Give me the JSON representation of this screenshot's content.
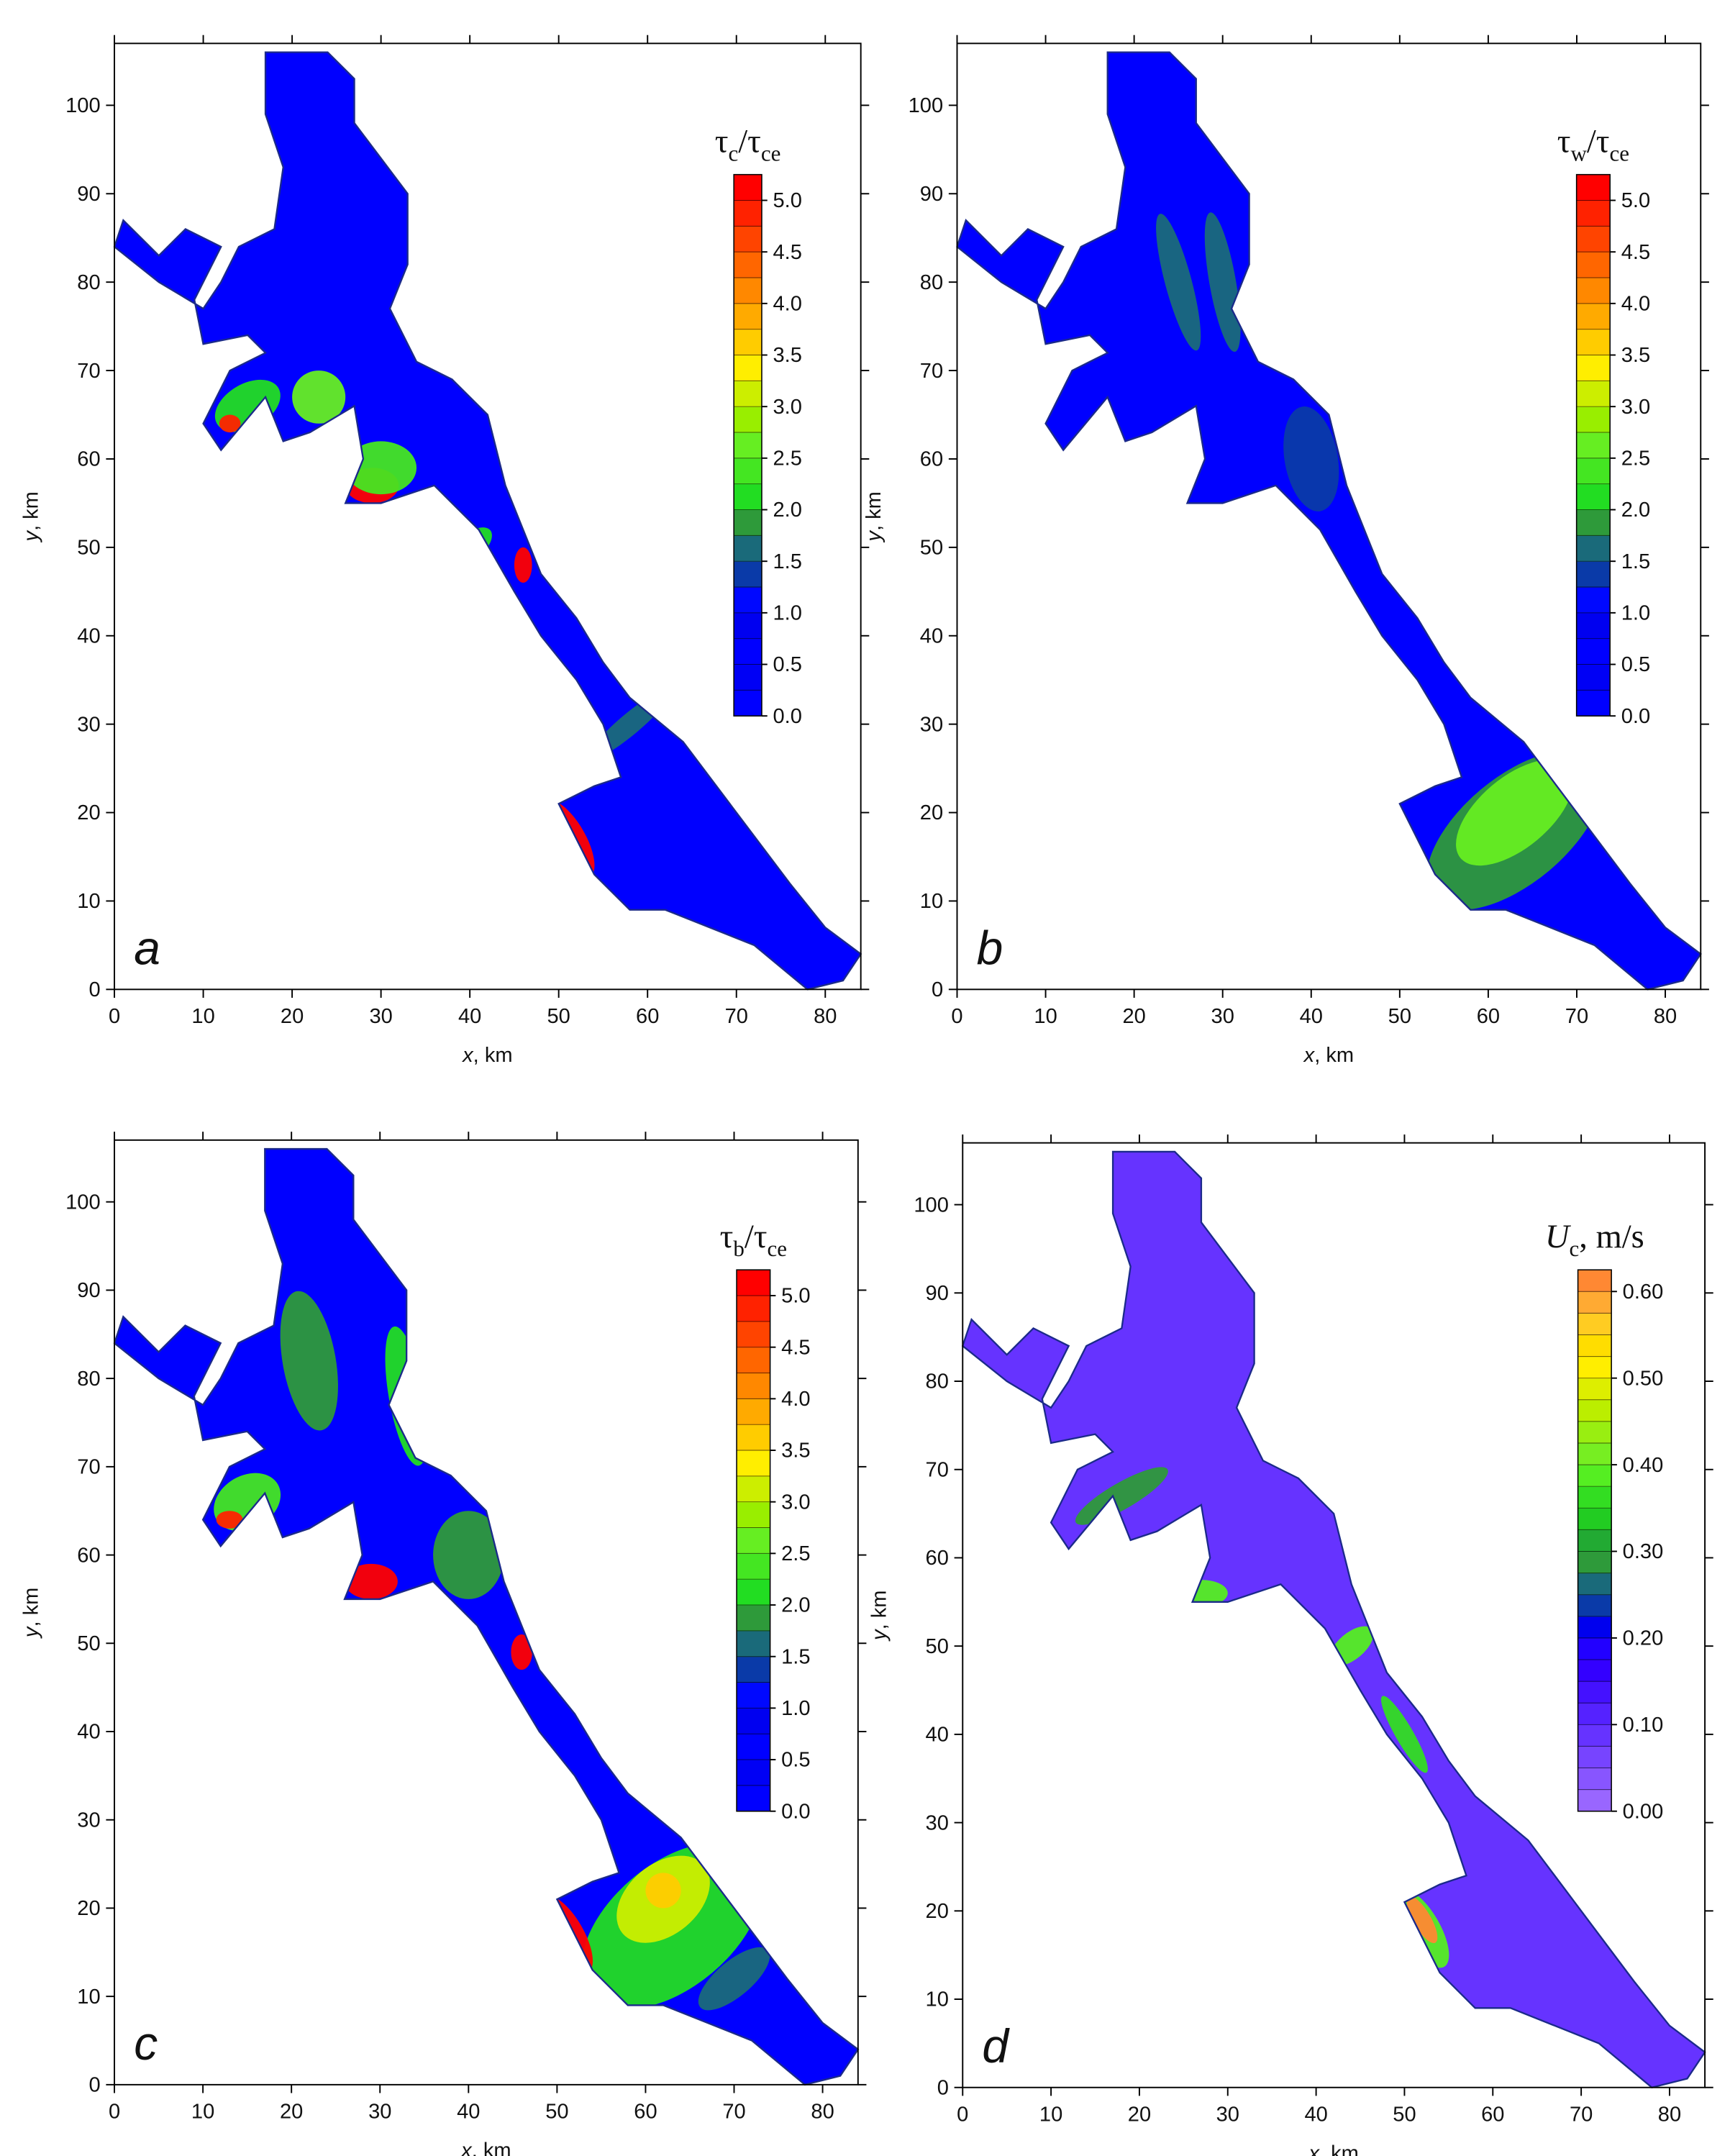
{
  "chart_data": [
    {
      "type": "contour",
      "panel_label": "a",
      "xlabel": [
        "x",
        ", km"
      ],
      "ylabel": [
        "y",
        ", km"
      ],
      "xlim": [
        0,
        84
      ],
      "ylim": [
        0,
        107
      ],
      "xticks": [
        0,
        10,
        20,
        30,
        40,
        50,
        60,
        70,
        80
      ],
      "yticks": [
        0,
        10,
        20,
        30,
        40,
        50,
        60,
        70,
        80,
        90,
        100
      ],
      "colorbar": {
        "label": [
          "τ",
          "c",
          "/τ",
          "ce"
        ],
        "lim": [
          0,
          5.25
        ],
        "ticks": [
          {
            "value": 0,
            "label": "0.0"
          },
          {
            "value": 0.5,
            "label": "0.5"
          },
          {
            "value": 1,
            "label": "1.0"
          },
          {
            "value": 1.5,
            "label": "1.5"
          },
          {
            "value": 2,
            "label": "2.0"
          },
          {
            "value": 2.5,
            "label": "2.5"
          },
          {
            "value": 3,
            "label": "3.0"
          },
          {
            "value": 3.5,
            "label": "3.5"
          },
          {
            "value": 4,
            "label": "4.0"
          },
          {
            "value": 4.5,
            "label": "4.5"
          },
          {
            "value": 5,
            "label": "5.0"
          }
        ],
        "colors": [
          "#0000ff",
          "#0000f5",
          "#0000ff",
          "#0000f0",
          "#0008ff",
          "#0a3aa8",
          "#1a6a7a",
          "#2e9a3a",
          "#22dd22",
          "#44e622",
          "#66ee22",
          "#99ee00",
          "#ccee00",
          "#ffee00",
          "#ffcc00",
          "#ffaa00",
          "#ff8800",
          "#ff6600",
          "#ff4400",
          "#ff2200",
          "#ff0000"
        ]
      }
    },
    {
      "type": "contour",
      "panel_label": "b",
      "xlabel": [
        "x",
        ", km"
      ],
      "ylabel": [
        "y",
        ", km"
      ],
      "xlim": [
        0,
        84
      ],
      "ylim": [
        0,
        107
      ],
      "xticks": [
        0,
        10,
        20,
        30,
        40,
        50,
        60,
        70,
        80
      ],
      "yticks": [
        0,
        10,
        20,
        30,
        40,
        50,
        60,
        70,
        80,
        90,
        100
      ],
      "colorbar": {
        "label": [
          "τ",
          "w",
          "/τ",
          "ce"
        ],
        "lim": [
          0,
          5.25
        ],
        "ticks": [
          {
            "value": 0,
            "label": "0.0"
          },
          {
            "value": 0.5,
            "label": "0.5"
          },
          {
            "value": 1,
            "label": "1.0"
          },
          {
            "value": 1.5,
            "label": "1.5"
          },
          {
            "value": 2,
            "label": "2.0"
          },
          {
            "value": 2.5,
            "label": "2.5"
          },
          {
            "value": 3,
            "label": "3.0"
          },
          {
            "value": 3.5,
            "label": "3.5"
          },
          {
            "value": 4,
            "label": "4.0"
          },
          {
            "value": 4.5,
            "label": "4.5"
          },
          {
            "value": 5,
            "label": "5.0"
          }
        ],
        "colors": [
          "#0000ff",
          "#0000f5",
          "#0000ff",
          "#0000f0",
          "#0008ff",
          "#0a3aa8",
          "#1a6a7a",
          "#2e9a3a",
          "#22dd22",
          "#44e622",
          "#66ee22",
          "#99ee00",
          "#ccee00",
          "#ffee00",
          "#ffcc00",
          "#ffaa00",
          "#ff8800",
          "#ff6600",
          "#ff4400",
          "#ff2200",
          "#ff0000"
        ]
      }
    },
    {
      "type": "contour",
      "panel_label": "c",
      "xlabel": [
        "x",
        ", km"
      ],
      "ylabel": [
        "y",
        ", km"
      ],
      "xlim": [
        0,
        84
      ],
      "ylim": [
        0,
        107
      ],
      "xticks": [
        0,
        10,
        20,
        30,
        40,
        50,
        60,
        70,
        80
      ],
      "yticks": [
        0,
        10,
        20,
        30,
        40,
        50,
        60,
        70,
        80,
        90,
        100
      ],
      "colorbar": {
        "label": [
          "τ",
          "b",
          "/τ",
          "ce"
        ],
        "lim": [
          0,
          5.25
        ],
        "ticks": [
          {
            "value": 0,
            "label": "0.0"
          },
          {
            "value": 0.5,
            "label": "0.5"
          },
          {
            "value": 1,
            "label": "1.0"
          },
          {
            "value": 1.5,
            "label": "1.5"
          },
          {
            "value": 2,
            "label": "2.0"
          },
          {
            "value": 2.5,
            "label": "2.5"
          },
          {
            "value": 3,
            "label": "3.0"
          },
          {
            "value": 3.5,
            "label": "3.5"
          },
          {
            "value": 4,
            "label": "4.0"
          },
          {
            "value": 4.5,
            "label": "4.5"
          },
          {
            "value": 5,
            "label": "5.0"
          }
        ],
        "colors": [
          "#0000ff",
          "#0000f5",
          "#0000ff",
          "#0000f0",
          "#0008ff",
          "#0a3aa8",
          "#1a6a7a",
          "#2e9a3a",
          "#22dd22",
          "#44e622",
          "#66ee22",
          "#99ee00",
          "#ccee00",
          "#ffee00",
          "#ffcc00",
          "#ffaa00",
          "#ff8800",
          "#ff6600",
          "#ff4400",
          "#ff2200",
          "#ff0000"
        ]
      }
    },
    {
      "type": "contour",
      "panel_label": "d",
      "xlabel": [
        "x",
        ", km"
      ],
      "ylabel": [
        "y",
        ", km"
      ],
      "xlim": [
        0,
        84
      ],
      "ylim": [
        0,
        107
      ],
      "xticks": [
        0,
        10,
        20,
        30,
        40,
        50,
        60,
        70,
        80
      ],
      "yticks": [
        0,
        10,
        20,
        30,
        40,
        50,
        60,
        70,
        80,
        90,
        100
      ],
      "colorbar": {
        "label": [
          "U",
          "c",
          ", m/s"
        ],
        "lim": [
          0,
          0.625
        ],
        "ticks": [
          {
            "value": 0,
            "label": "0.00"
          },
          {
            "value": 0.1,
            "label": "0.10"
          },
          {
            "value": 0.2,
            "label": "0.20"
          },
          {
            "value": 0.3,
            "label": "0.30"
          },
          {
            "value": 0.4,
            "label": "0.40"
          },
          {
            "value": 0.5,
            "label": "0.50"
          },
          {
            "value": 0.6,
            "label": "0.60"
          }
        ],
        "colors": [
          "#9966ff",
          "#8855ff",
          "#7744ff",
          "#6633ff",
          "#5522ff",
          "#4411ff",
          "#3300ff",
          "#2200ff",
          "#0000ee",
          "#0a3aa8",
          "#1a6a7a",
          "#2e9a3a",
          "#22aa33",
          "#22cc22",
          "#33dd22",
          "#55ee22",
          "#77ee22",
          "#99ee11",
          "#bbee00",
          "#ddee00",
          "#ffee00",
          "#ffdd00",
          "#ffcc22",
          "#ffaa33",
          "#ff8833"
        ]
      }
    }
  ]
}
